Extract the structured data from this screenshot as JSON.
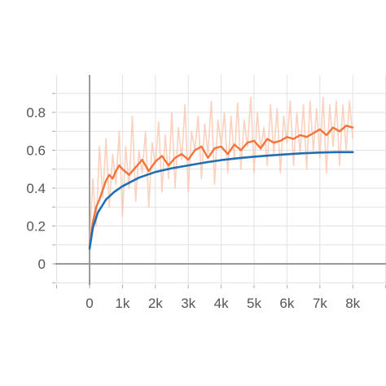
{
  "chart_data": {
    "type": "line",
    "title": "",
    "xlabel": "",
    "ylabel": "",
    "xlim": [
      -1000,
      9000
    ],
    "ylim": [
      -0.1,
      1.0
    ],
    "x_ticks": [
      0,
      1000,
      2000,
      3000,
      4000,
      5000,
      6000,
      7000,
      8000
    ],
    "x_tick_labels": [
      "0",
      "1k",
      "2k",
      "3k",
      "4k",
      "5k",
      "6k",
      "7k",
      "8k"
    ],
    "y_ticks": [
      0,
      0.2,
      0.4,
      0.6,
      0.8
    ],
    "y_tick_labels": [
      "0",
      "0.2",
      "0.4",
      "0.6",
      "0.8"
    ],
    "grid": true,
    "legend": "none",
    "series": [
      {
        "color": "#1f6fb2",
        "style": "smooth",
        "x": [
          0,
          100,
          250,
          500,
          750,
          1000,
          1500,
          2000,
          2500,
          3000,
          3500,
          4000,
          4500,
          5000,
          5500,
          6000,
          6500,
          7000,
          7500,
          8000
        ],
        "y": [
          0.08,
          0.19,
          0.27,
          0.34,
          0.38,
          0.41,
          0.455,
          0.485,
          0.505,
          0.52,
          0.535,
          0.548,
          0.558,
          0.566,
          0.573,
          0.579,
          0.584,
          0.588,
          0.59,
          0.59
        ]
      },
      {
        "color": "#f4733a",
        "style": "smoothed",
        "x": [
          0,
          100,
          200,
          300,
          400,
          500,
          600,
          700,
          800,
          900,
          1000,
          1200,
          1400,
          1600,
          1800,
          2000,
          2200,
          2400,
          2600,
          2800,
          3000,
          3200,
          3400,
          3600,
          3800,
          4000,
          4200,
          4400,
          4600,
          4800,
          5000,
          5200,
          5400,
          5600,
          5800,
          6000,
          6200,
          6400,
          6600,
          6800,
          7000,
          7200,
          7400,
          7600,
          7800,
          8000
        ],
        "y": [
          0.09,
          0.22,
          0.3,
          0.34,
          0.39,
          0.44,
          0.47,
          0.45,
          0.49,
          0.52,
          0.5,
          0.47,
          0.51,
          0.55,
          0.49,
          0.54,
          0.57,
          0.52,
          0.56,
          0.58,
          0.55,
          0.6,
          0.62,
          0.56,
          0.61,
          0.62,
          0.58,
          0.63,
          0.6,
          0.64,
          0.65,
          0.61,
          0.66,
          0.64,
          0.65,
          0.67,
          0.66,
          0.68,
          0.67,
          0.69,
          0.71,
          0.68,
          0.72,
          0.7,
          0.73,
          0.72
        ]
      },
      {
        "color": "#f9c2aa",
        "style": "raw",
        "x": [
          0,
          100,
          200,
          300,
          400,
          500,
          600,
          700,
          800,
          900,
          1000,
          1100,
          1200,
          1300,
          1400,
          1500,
          1600,
          1700,
          1800,
          1900,
          2000,
          2100,
          2200,
          2300,
          2400,
          2500,
          2600,
          2700,
          2800,
          2900,
          3000,
          3100,
          3200,
          3300,
          3400,
          3500,
          3600,
          3700,
          3800,
          3900,
          4000,
          4100,
          4200,
          4300,
          4400,
          4500,
          4600,
          4700,
          4800,
          4900,
          5000,
          5100,
          5200,
          5300,
          5400,
          5500,
          5600,
          5700,
          5800,
          5900,
          6000,
          6100,
          6200,
          6300,
          6400,
          6500,
          6600,
          6700,
          6800,
          6900,
          7000,
          7100,
          7200,
          7300,
          7400,
          7500,
          7600,
          7700,
          7800,
          7900,
          8000
        ],
        "y": [
          0.1,
          0.45,
          0.2,
          0.62,
          0.35,
          0.66,
          0.3,
          0.58,
          0.42,
          0.7,
          0.25,
          0.62,
          0.4,
          0.78,
          0.33,
          0.6,
          0.48,
          0.7,
          0.3,
          0.64,
          0.52,
          0.75,
          0.38,
          0.68,
          0.45,
          0.8,
          0.4,
          0.72,
          0.55,
          0.84,
          0.38,
          0.7,
          0.6,
          0.78,
          0.45,
          0.74,
          0.58,
          0.86,
          0.42,
          0.76,
          0.62,
          0.8,
          0.48,
          0.78,
          0.55,
          0.85,
          0.5,
          0.76,
          0.62,
          0.88,
          0.48,
          0.8,
          0.6,
          0.72,
          0.52,
          0.84,
          0.58,
          0.82,
          0.48,
          0.78,
          0.64,
          0.86,
          0.52,
          0.8,
          0.58,
          0.84,
          0.5,
          0.86,
          0.6,
          0.82,
          0.56,
          0.88,
          0.48,
          0.84,
          0.62,
          0.86,
          0.52,
          0.84,
          0.6,
          0.86,
          0.66
        ]
      }
    ]
  }
}
